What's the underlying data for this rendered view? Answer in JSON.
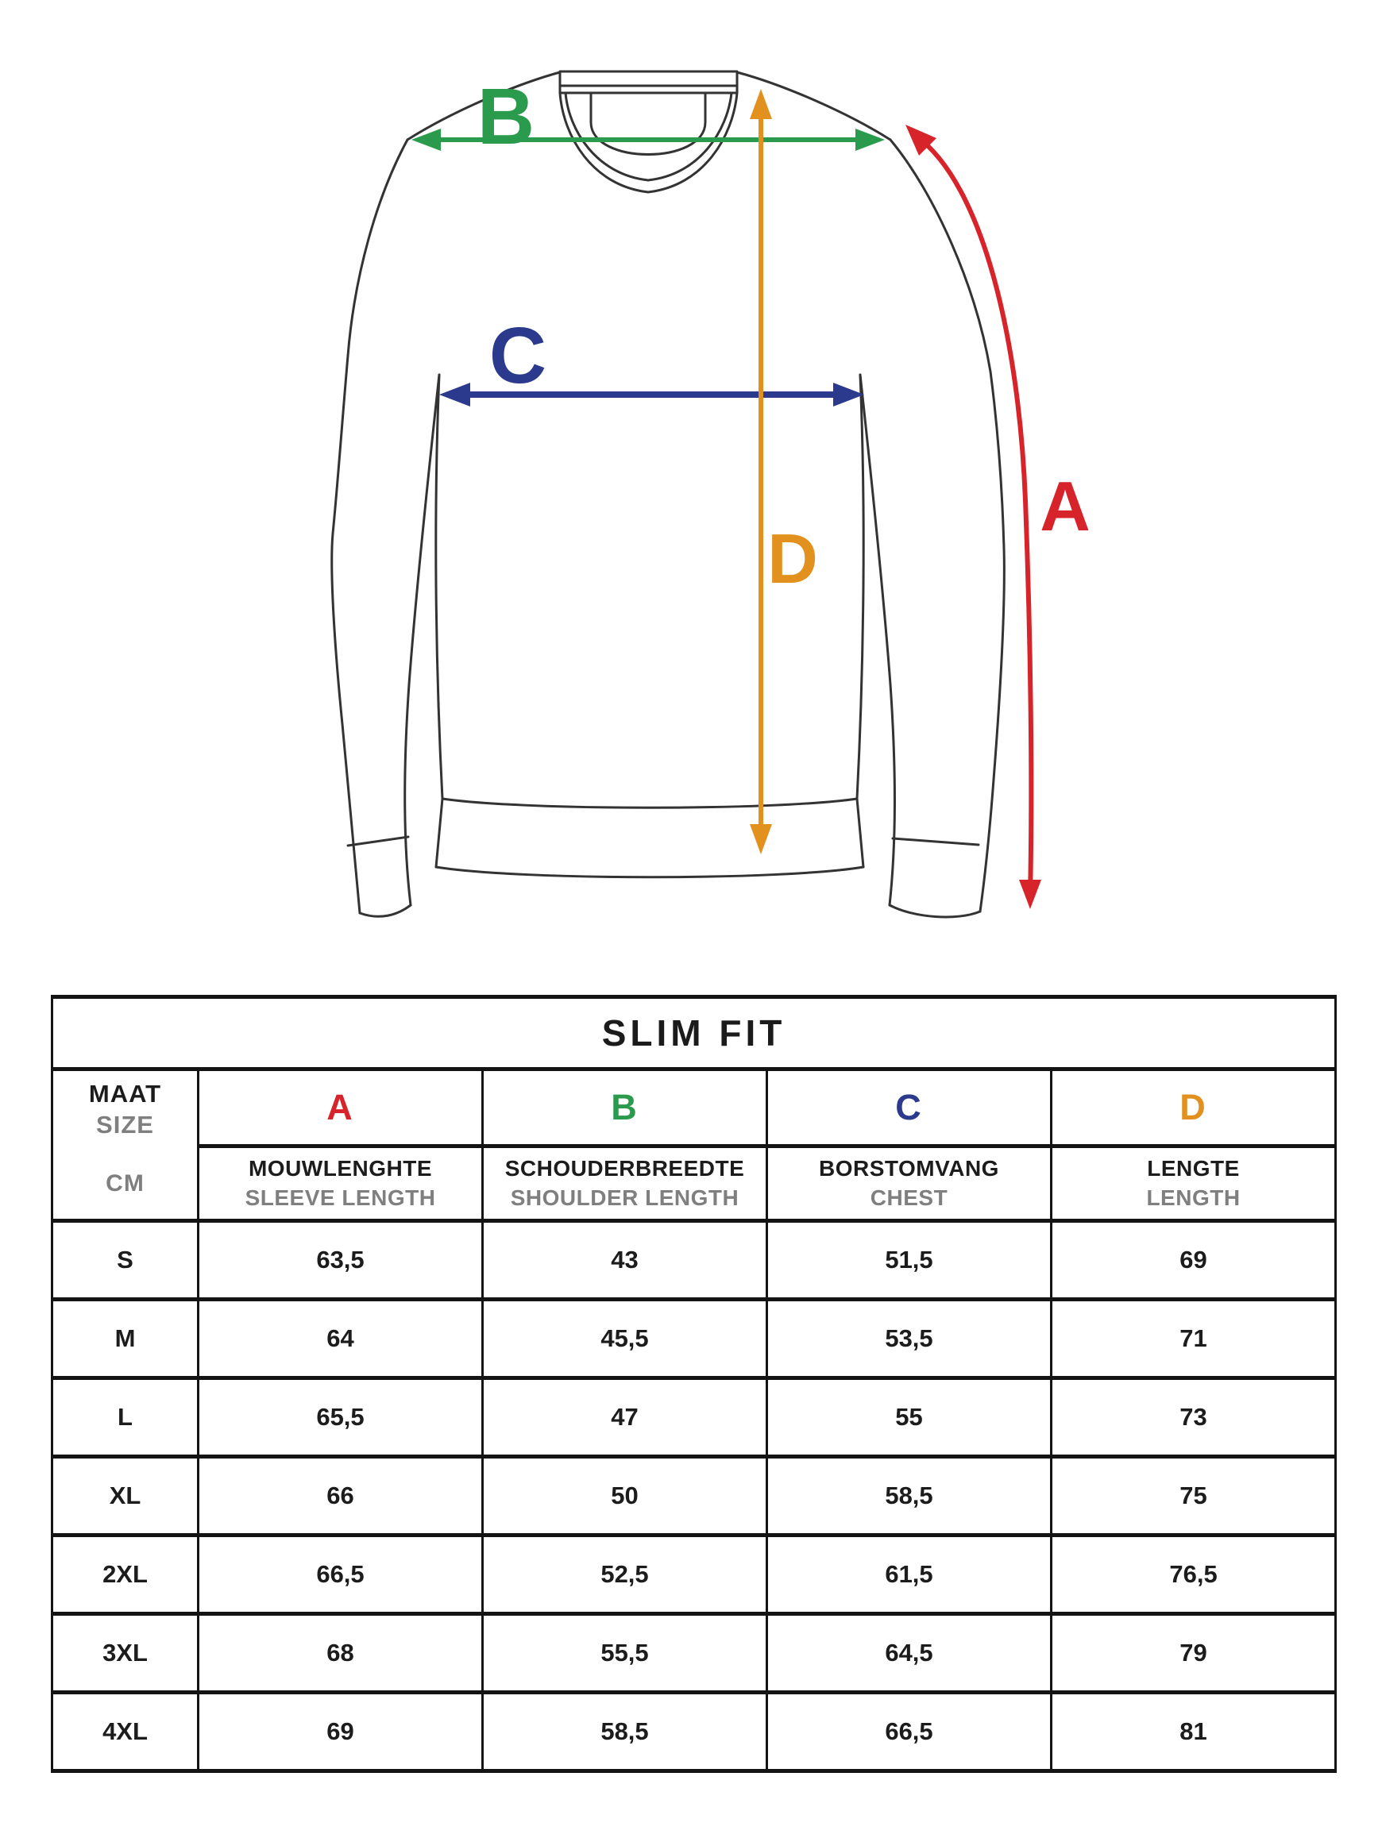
{
  "diagram": {
    "labels": {
      "a": "A",
      "b": "B",
      "c": "C",
      "d": "D"
    },
    "colors": {
      "a": "#d7242b",
      "b": "#2a9b4d",
      "c": "#2b3a8c",
      "d": "#e2911e",
      "outline": "#333333"
    }
  },
  "table": {
    "title": "SLIM FIT",
    "size_header": {
      "line1": "MAAT",
      "line2": "SIZE",
      "unit": "CM"
    },
    "columns": [
      {
        "letter": "A",
        "color": "#d7242b",
        "name_nl": "MOUWLENGHTE",
        "name_en": "SLEEVE LENGTH"
      },
      {
        "letter": "B",
        "color": "#2a9b4d",
        "name_nl": "SCHOUDERBREEDTE",
        "name_en": "SHOULDER LENGTH"
      },
      {
        "letter": "C",
        "color": "#2b3a8c",
        "name_nl": "BORSTOMVANG",
        "name_en": "CHEST"
      },
      {
        "letter": "D",
        "color": "#e2911e",
        "name_nl": "LENGTE",
        "name_en": "LENGTH"
      }
    ],
    "rows": [
      {
        "size": "S",
        "values": [
          "63,5",
          "43",
          "51,5",
          "69"
        ]
      },
      {
        "size": "M",
        "values": [
          "64",
          "45,5",
          "53,5",
          "71"
        ]
      },
      {
        "size": "L",
        "values": [
          "65,5",
          "47",
          "55",
          "73"
        ]
      },
      {
        "size": "XL",
        "values": [
          "66",
          "50",
          "58,5",
          "75"
        ]
      },
      {
        "size": "2XL",
        "values": [
          "66,5",
          "52,5",
          "61,5",
          "76,5"
        ]
      },
      {
        "size": "3XL",
        "values": [
          "68",
          "55,5",
          "64,5",
          "79"
        ]
      },
      {
        "size": "4XL",
        "values": [
          "69",
          "58,5",
          "66,5",
          "81"
        ]
      }
    ]
  }
}
